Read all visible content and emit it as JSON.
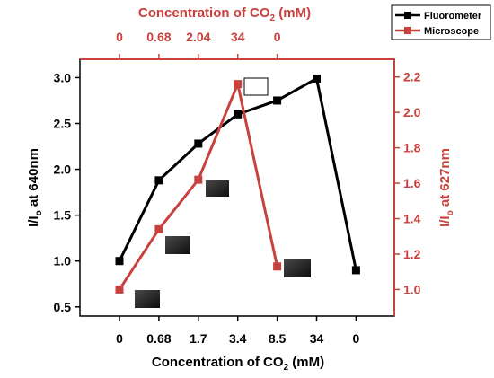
{
  "chart_data": {
    "type": "line",
    "x_positions": [
      0,
      1,
      2,
      3,
      4,
      5,
      6
    ],
    "bottom_axis": {
      "label_main": "Concentration of CO",
      "label_sub": "2",
      "label_unit": " (mM)",
      "tick_labels": [
        "0",
        "0.68",
        "1.7",
        "3.4",
        "8.5",
        "34",
        "0"
      ]
    },
    "top_axis": {
      "label_main": "Concentration of CO",
      "label_sub": "2",
      "label_unit": " (mM)",
      "tick_labels": [
        "0",
        "0.68",
        "2.04",
        "34",
        "0"
      ],
      "tick_positions": [
        0,
        1,
        2,
        3,
        4
      ]
    },
    "left_axis": {
      "label_main": "I/I",
      "label_sub": "o",
      "label_unit": " at 640nm",
      "ylim": [
        0.4,
        3.2
      ],
      "ticks": [
        "0.5",
        "1.0",
        "1.5",
        "2.0",
        "2.5",
        "3.0"
      ],
      "tick_values": [
        0.5,
        1.0,
        1.5,
        2.0,
        2.5,
        3.0
      ]
    },
    "right_axis": {
      "label_main": "I/I",
      "label_sub": "o",
      "label_unit": " at 627nm",
      "ylim": [
        0.85,
        2.3
      ],
      "ticks": [
        "1.0",
        "1.2",
        "1.4",
        "1.6",
        "1.8",
        "2.0",
        "2.2"
      ],
      "tick_values": [
        1.0,
        1.2,
        1.4,
        1.6,
        1.8,
        2.0,
        2.2
      ]
    },
    "series": [
      {
        "name": "Fluorometer",
        "color": "#000000",
        "axis": "left",
        "x": [
          0,
          1,
          2,
          3,
          4,
          5,
          6
        ],
        "values": [
          1.0,
          1.88,
          2.28,
          2.6,
          2.75,
          2.99,
          0.9
        ]
      },
      {
        "name": "Microscope",
        "color": "#c8413d",
        "axis": "right",
        "x": [
          0,
          1,
          2,
          3,
          4
        ],
        "values": [
          1.0,
          1.34,
          1.62,
          2.16,
          1.13
        ]
      }
    ],
    "legend": {
      "placement": "top-right",
      "entries": [
        "Fluorometer",
        "Microscope"
      ]
    },
    "colors": {
      "left_axis": "#000000",
      "right_axis": "#c8413d"
    },
    "grid": false
  }
}
